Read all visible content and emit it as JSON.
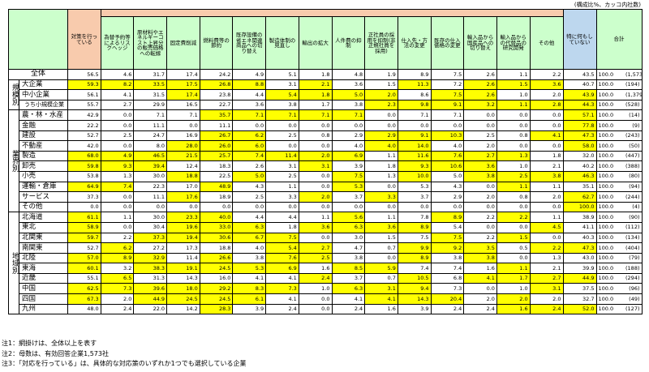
{
  "caption": "(構成比%、カッコ内社数)",
  "columns": [
    "対策を行っている",
    "為替予約等によるリスクヘッジ",
    "原材料やエネルギーコスト上昇分の販売価格への転嫁",
    "固定費削減",
    "燃料費等の節約",
    "既存設備の省エネ関連商品への切り替え",
    "製造体制の見直し",
    "輸出の拡大",
    "人件費の抑制",
    "正社員の採用を抑制(非正規社員を採用)",
    "仕入先・方法の変更",
    "既存の仕入価格の変更",
    "輸入品から国産品への切り替え",
    "輸入品からの代替品の研究開発",
    "その他",
    "特に何もしていない"
  ],
  "total_header": "合計",
  "colors": {
    "highlight": "#ffff00",
    "action_header": "#f8cbad",
    "none_header": "#bdd7ee",
    "header": "#ccffcc"
  },
  "overall": {
    "label": "全体",
    "values": [
      "56.5",
      "4.6",
      "31.7",
      "17.4",
      "24.2",
      "4.9",
      "5.1",
      "1.8",
      "4.8",
      "1.9",
      "8.9",
      "7.5",
      "2.6",
      "1.1",
      "2.2",
      "43.5"
    ],
    "total": "100.0",
    "n": "(1,573)",
    "hl": []
  },
  "groups": [
    {
      "label": "規模別",
      "rows": [
        {
          "label": "大企業",
          "values": [
            "59.3",
            "8.2",
            "33.5",
            "17.5",
            "26.8",
            "8.8",
            "3.1",
            "2.1",
            "3.6",
            "1.5",
            "11.3",
            "7.2",
            "2.6",
            "1.5",
            "3.6",
            "40.7"
          ],
          "total": "100.0",
          "n": "(194)",
          "hl": [
            0,
            1,
            2,
            3,
            4,
            5,
            7,
            10,
            12,
            13,
            14
          ]
        },
        {
          "label": "中小企業",
          "values": [
            "56.1",
            "4.1",
            "31.5",
            "17.4",
            "23.8",
            "4.4",
            "5.4",
            "1.8",
            "5.0",
            "2.0",
            "8.6",
            "7.5",
            "2.6",
            "1.0",
            "2.0",
            "43.9"
          ],
          "total": "100.0",
          "n": "(1,379)",
          "hl": [
            3,
            6,
            7,
            8,
            9,
            11,
            12,
            15
          ]
        },
        {
          "label": "うち小規模企業",
          "indent": true,
          "values": [
            "55.7",
            "2.7",
            "29.9",
            "16.5",
            "22.7",
            "3.6",
            "3.8",
            "1.7",
            "3.8",
            "2.3",
            "9.8",
            "9.1",
            "3.2",
            "1.1",
            "2.8",
            "44.3"
          ],
          "total": "100.0",
          "n": "(528)",
          "hl": [
            9,
            10,
            11,
            12,
            13,
            14,
            15
          ]
        }
      ]
    },
    {
      "label": "業界別",
      "rows": [
        {
          "label": "農・林・水産",
          "values": [
            "42.9",
            "0.0",
            "7.1",
            "7.1",
            "35.7",
            "7.1",
            "7.1",
            "7.1",
            "7.1",
            "0.0",
            "7.1",
            "7.1",
            "0.0",
            "0.0",
            "0.0",
            "57.1"
          ],
          "total": "100.0",
          "n": "(14)",
          "hl": [
            4,
            5,
            6,
            7,
            8,
            15
          ]
        },
        {
          "label": "金融",
          "values": [
            "22.2",
            "0.0",
            "11.1",
            "0.0",
            "11.1",
            "0.0",
            "0.0",
            "0.0",
            "0.0",
            "0.0",
            "0.0",
            "0.0",
            "0.0",
            "0.0",
            "0.0",
            "77.8"
          ],
          "total": "100.0",
          "n": "(9)",
          "hl": [
            15
          ]
        },
        {
          "label": "建設",
          "values": [
            "52.7",
            "2.5",
            "24.7",
            "16.9",
            "26.7",
            "6.2",
            "2.5",
            "0.8",
            "2.9",
            "2.9",
            "9.1",
            "10.3",
            "2.5",
            "0.8",
            "4.1",
            "47.3"
          ],
          "total": "100.0",
          "n": "(243)",
          "hl": [
            4,
            5,
            9,
            10,
            11,
            14,
            15
          ]
        },
        {
          "label": "不動産",
          "values": [
            "42.0",
            "0.0",
            "8.0",
            "28.0",
            "26.0",
            "6.0",
            "0.0",
            "0.0",
            "4.0",
            "4.0",
            "14.0",
            "4.0",
            "2.0",
            "0.0",
            "0.0",
            "58.0"
          ],
          "total": "100.0",
          "n": "(50)",
          "hl": [
            3,
            4,
            5,
            9,
            10,
            15
          ]
        },
        {
          "label": "製造",
          "values": [
            "68.0",
            "4.9",
            "46.5",
            "21.5",
            "25.7",
            "7.4",
            "11.4",
            "2.0",
            "6.9",
            "1.1",
            "11.6",
            "7.6",
            "2.7",
            "1.3",
            "1.8",
            "32.0"
          ],
          "total": "100.0",
          "n": "(447)",
          "hl": [
            0,
            1,
            2,
            3,
            4,
            5,
            6,
            7,
            8,
            10,
            11,
            12,
            13
          ]
        },
        {
          "label": "卸売",
          "values": [
            "59.8",
            "9.3",
            "39.4",
            "12.4",
            "18.3",
            "2.6",
            "3.1",
            "3.1",
            "3.9",
            "1.8",
            "9.3",
            "10.6",
            "3.6",
            "1.0",
            "2.1",
            "40.2"
          ],
          "total": "100.0",
          "n": "(388)",
          "hl": [
            0,
            1,
            2,
            7,
            10,
            11,
            12
          ]
        },
        {
          "label": "小売",
          "values": [
            "53.8",
            "1.3",
            "30.0",
            "18.8",
            "22.5",
            "5.0",
            "2.5",
            "0.0",
            "7.5",
            "1.3",
            "10.0",
            "5.0",
            "3.8",
            "2.5",
            "3.8",
            "46.3"
          ],
          "total": "100.0",
          "n": "(80)",
          "hl": [
            3,
            5,
            8,
            10,
            12,
            13,
            14,
            15
          ]
        },
        {
          "label": "運輸・倉庫",
          "values": [
            "64.9",
            "7.4",
            "22.3",
            "17.0",
            "48.9",
            "4.3",
            "1.1",
            "0.0",
            "5.3",
            "0.0",
            "5.3",
            "4.3",
            "0.0",
            "1.1",
            "1.1",
            "35.1"
          ],
          "total": "100.0",
          "n": "(94)",
          "hl": [
            0,
            1,
            4,
            8,
            13
          ]
        },
        {
          "label": "サービス",
          "values": [
            "37.3",
            "0.0",
            "11.1",
            "17.6",
            "18.9",
            "2.5",
            "3.3",
            "2.0",
            "3.7",
            "3.3",
            "3.7",
            "2.9",
            "2.0",
            "0.8",
            "2.0",
            "62.7"
          ],
          "total": "100.0",
          "n": "(244)",
          "hl": [
            3,
            7,
            9,
            15
          ]
        },
        {
          "label": "その他",
          "values": [
            "0.0",
            "0.0",
            "0.0",
            "0.0",
            "0.0",
            "0.0",
            "0.0",
            "0.0",
            "0.0",
            "0.0",
            "0.0",
            "0.0",
            "0.0",
            "0.0",
            "0.0",
            "100.0"
          ],
          "total": "100.0",
          "n": "(4)",
          "hl": [
            15
          ]
        }
      ]
    },
    {
      "label": "地域別",
      "rows": [
        {
          "label": "北海道",
          "values": [
            "61.1",
            "1.1",
            "30.0",
            "23.3",
            "40.0",
            "4.4",
            "4.4",
            "1.1",
            "5.6",
            "1.1",
            "7.8",
            "8.9",
            "2.2",
            "2.2",
            "1.1",
            "38.9"
          ],
          "total": "100.0",
          "n": "(90)",
          "hl": [
            0,
            3,
            4,
            8,
            11,
            13
          ]
        },
        {
          "label": "東北",
          "values": [
            "58.9",
            "0.0",
            "30.4",
            "19.6",
            "33.0",
            "6.3",
            "1.8",
            "3.6",
            "6.3",
            "3.6",
            "8.9",
            "5.4",
            "0.0",
            "0.0",
            "4.5",
            "41.1"
          ],
          "total": "100.0",
          "n": "(112)",
          "hl": [
            0,
            3,
            4,
            5,
            7,
            8,
            9,
            10,
            14
          ]
        },
        {
          "label": "北関東",
          "values": [
            "59.7",
            "2.2",
            "37.3",
            "19.4",
            "30.6",
            "6.7",
            "7.5",
            "0.0",
            "3.0",
            "1.5",
            "7.5",
            "7.5",
            "2.2",
            "1.5",
            "0.0",
            "40.3"
          ],
          "total": "100.0",
          "n": "(134)",
          "hl": [
            0,
            2,
            3,
            4,
            5,
            6,
            11,
            13
          ]
        },
        {
          "label": "南関東",
          "values": [
            "52.7",
            "6.2",
            "27.2",
            "17.3",
            "18.8",
            "4.0",
            "5.4",
            "2.7",
            "4.7",
            "0.7",
            "9.9",
            "9.2",
            "3.5",
            "0.5",
            "2.2",
            "47.3"
          ],
          "total": "100.0",
          "n": "(404)",
          "hl": [
            1,
            6,
            7,
            10,
            11,
            12,
            14,
            15
          ]
        },
        {
          "label": "北陸",
          "values": [
            "57.0",
            "8.9",
            "32.9",
            "11.4",
            "26.6",
            "3.8",
            "7.6",
            "2.5",
            "3.8",
            "0.0",
            "8.9",
            "3.8",
            "3.8",
            "0.0",
            "1.3",
            "43.0"
          ],
          "total": "100.0",
          "n": "(79)",
          "hl": [
            0,
            1,
            2,
            4,
            6,
            7,
            10,
            12
          ]
        },
        {
          "label": "東海",
          "values": [
            "60.1",
            "3.2",
            "38.3",
            "19.1",
            "24.5",
            "5.3",
            "6.9",
            "1.6",
            "8.5",
            "5.9",
            "7.4",
            "7.4",
            "1.6",
            "1.1",
            "2.1",
            "39.9"
          ],
          "total": "100.0",
          "n": "(188)",
          "hl": [
            0,
            2,
            3,
            4,
            5,
            6,
            8,
            9,
            13
          ]
        },
        {
          "label": "近畿",
          "values": [
            "55.1",
            "6.5",
            "31.3",
            "14.3",
            "16.0",
            "4.1",
            "4.1",
            "2.4",
            "3.7",
            "0.7",
            "10.5",
            "6.8",
            "4.1",
            "1.7",
            "2.7",
            "44.9"
          ],
          "total": "100.0",
          "n": "(294)",
          "hl": [
            1,
            7,
            10,
            12,
            13,
            14,
            15
          ]
        },
        {
          "label": "中国",
          "values": [
            "62.5",
            "7.3",
            "39.6",
            "18.0",
            "29.2",
            "8.3",
            "7.3",
            "1.0",
            "6.3",
            "3.1",
            "9.4",
            "7.3",
            "0.0",
            "1.0",
            "3.1",
            "37.5"
          ],
          "total": "100.0",
          "n": "(96)",
          "hl": [
            0,
            1,
            2,
            3,
            4,
            5,
            6,
            8,
            9,
            10,
            14
          ]
        },
        {
          "label": "四国",
          "values": [
            "67.3",
            "2.0",
            "44.9",
            "24.5",
            "24.5",
            "6.1",
            "4.1",
            "0.0",
            "4.1",
            "4.1",
            "14.3",
            "20.4",
            "2.0",
            "2.0",
            "2.0",
            "32.7"
          ],
          "total": "100.0",
          "n": "(49)",
          "hl": [
            0,
            2,
            3,
            4,
            5,
            9,
            10,
            11,
            13
          ]
        },
        {
          "label": "九州",
          "values": [
            "48.0",
            "2.4",
            "22.0",
            "14.2",
            "28.3",
            "3.9",
            "2.4",
            "0.0",
            "2.4",
            "1.6",
            "3.9",
            "2.4",
            "2.4",
            "1.6",
            "2.4",
            "52.0"
          ],
          "total": "100.0",
          "n": "(127)",
          "hl": [
            4,
            13,
            14,
            15
          ]
        }
      ]
    }
  ],
  "notes": [
    "注1：網掛けは、全体以上を表す",
    "注2：母数は、有効回答企業1,573社",
    "注3：「対応を行っている」は、具体的な対応策のいずれか1つでも選択している企業"
  ]
}
